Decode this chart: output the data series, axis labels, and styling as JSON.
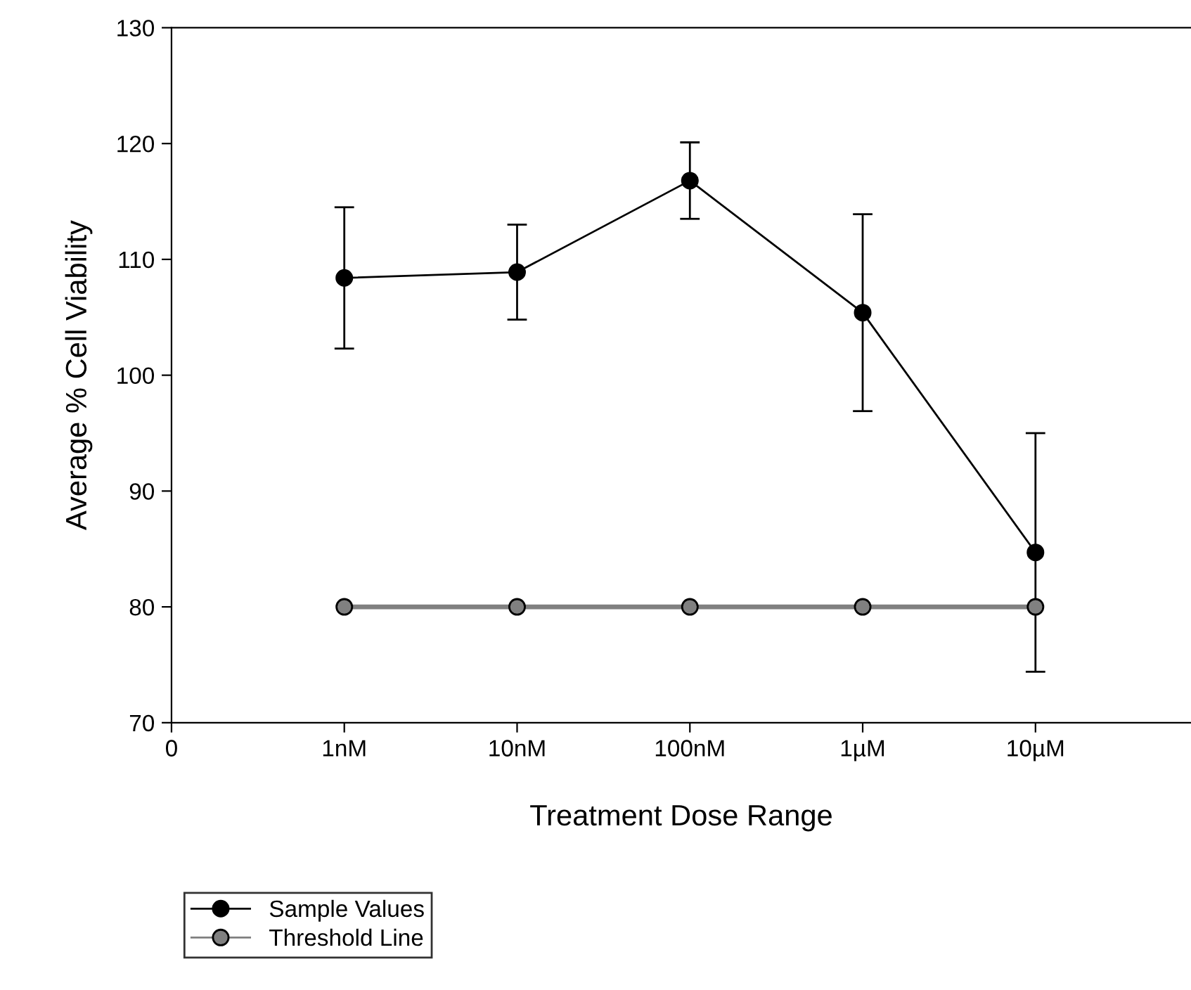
{
  "chart_data": {
    "type": "line",
    "xlabel": "Treatment Dose Range",
    "ylabel": "Average % Cell Viability",
    "categories": [
      "0",
      "1nM",
      "10nM",
      "100nM",
      "1µM",
      "10µM"
    ],
    "series": [
      {
        "name": "Sample Values",
        "color": "#000000",
        "values": [
          null,
          108.4,
          108.9,
          116.8,
          105.4,
          84.7
        ],
        "errors": [
          null,
          6.1,
          4.1,
          3.3,
          8.5,
          10.3
        ]
      },
      {
        "name": "Threshold Line",
        "color": "#808080",
        "values": [
          null,
          80,
          80,
          80,
          80,
          80
        ]
      }
    ],
    "ylim": [
      70,
      130
    ],
    "yticks": [
      70,
      80,
      90,
      100,
      110,
      120,
      130
    ],
    "marker": "circle",
    "line_style": "solid",
    "grid": false,
    "legend": "bottom left"
  }
}
